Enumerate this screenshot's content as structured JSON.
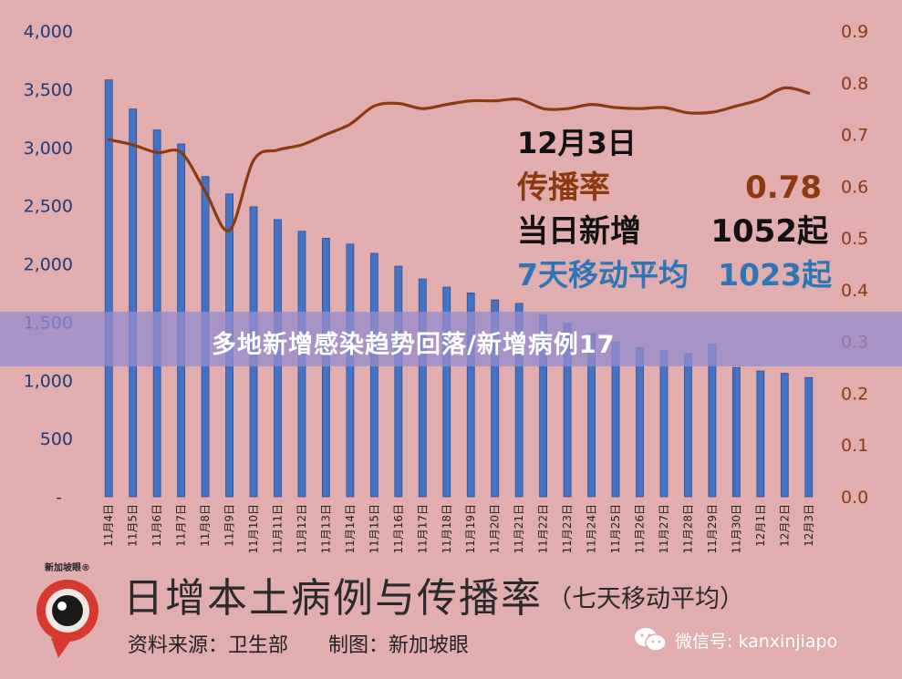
{
  "banner": {
    "text": "多地新增感染趋势回落/新增病例17"
  },
  "footer": {
    "title": "日增本土病例与传播率",
    "subtitle": "（七天移动平均）",
    "source": "资料来源：卫生部　　制图：新加坡眼",
    "logo_label": "新加坡眼®",
    "wechat_label": "微信号: kanxinjiapo"
  },
  "annotation": {
    "date": "12月3日",
    "rate_label": "传播率",
    "rate_value": "0.78",
    "daily_label": "当日新增",
    "daily_value": "1052起",
    "avg_label": "7天移动平均",
    "avg_value": "1023起"
  },
  "colors": {
    "bar": "#4472c4",
    "line": "#8b3a0f",
    "left_axis": "#1f3a78",
    "right_axis": "#8a3a12",
    "avg_text": "#2e75b6",
    "background": "#e2adaf"
  },
  "chart_data": {
    "type": "bar",
    "categories": [
      "11月4日",
      "11月5日",
      "11月6日",
      "11月7日",
      "11月8日",
      "11月9日",
      "11月10日",
      "11月11日",
      "11月12日",
      "11月13日",
      "11月14日",
      "11月15日",
      "11月16日",
      "11月17日",
      "11月18日",
      "11月19日",
      "11月20日",
      "11月21日",
      "11月22日",
      "11月23日",
      "11月24日",
      "11月25日",
      "11月26日",
      "11月27日",
      "11月28日",
      "11月29日",
      "11月30日",
      "12月1日",
      "12月2日",
      "12月3日"
    ],
    "series": [
      {
        "axis": "left",
        "type": "bar",
        "values": [
          3580,
          3330,
          3150,
          3030,
          2750,
          2600,
          2490,
          2380,
          2280,
          2220,
          2170,
          2090,
          1980,
          1870,
          1800,
          1750,
          1690,
          1660,
          1560,
          1490,
          1400,
          1330,
          1280,
          1260,
          1230,
          1310,
          1110,
          1080,
          1060,
          1023
        ]
      },
      {
        "axis": "right",
        "type": "line",
        "values": [
          0.69,
          0.68,
          0.665,
          0.665,
          0.59,
          0.515,
          0.65,
          0.67,
          0.68,
          0.7,
          0.72,
          0.755,
          0.76,
          0.75,
          0.758,
          0.765,
          0.765,
          0.768,
          0.75,
          0.75,
          0.758,
          0.752,
          0.75,
          0.752,
          0.742,
          0.743,
          0.755,
          0.768,
          0.79,
          0.78
        ]
      }
    ],
    "y_left": {
      "ticks": [
        "4,000",
        "3,500",
        "3,000",
        "2,500",
        "2,000",
        "1,500",
        "1,000",
        "500",
        "-"
      ],
      "ylim": [
        0,
        4000
      ]
    },
    "y_right": {
      "ticks": [
        "0.9",
        "0.8",
        "0.7",
        "0.6",
        "0.5",
        "0.4",
        "0.3",
        "0.2",
        "0.1",
        "0.0"
      ],
      "ylim": [
        0,
        0.9
      ]
    },
    "grid": false
  }
}
